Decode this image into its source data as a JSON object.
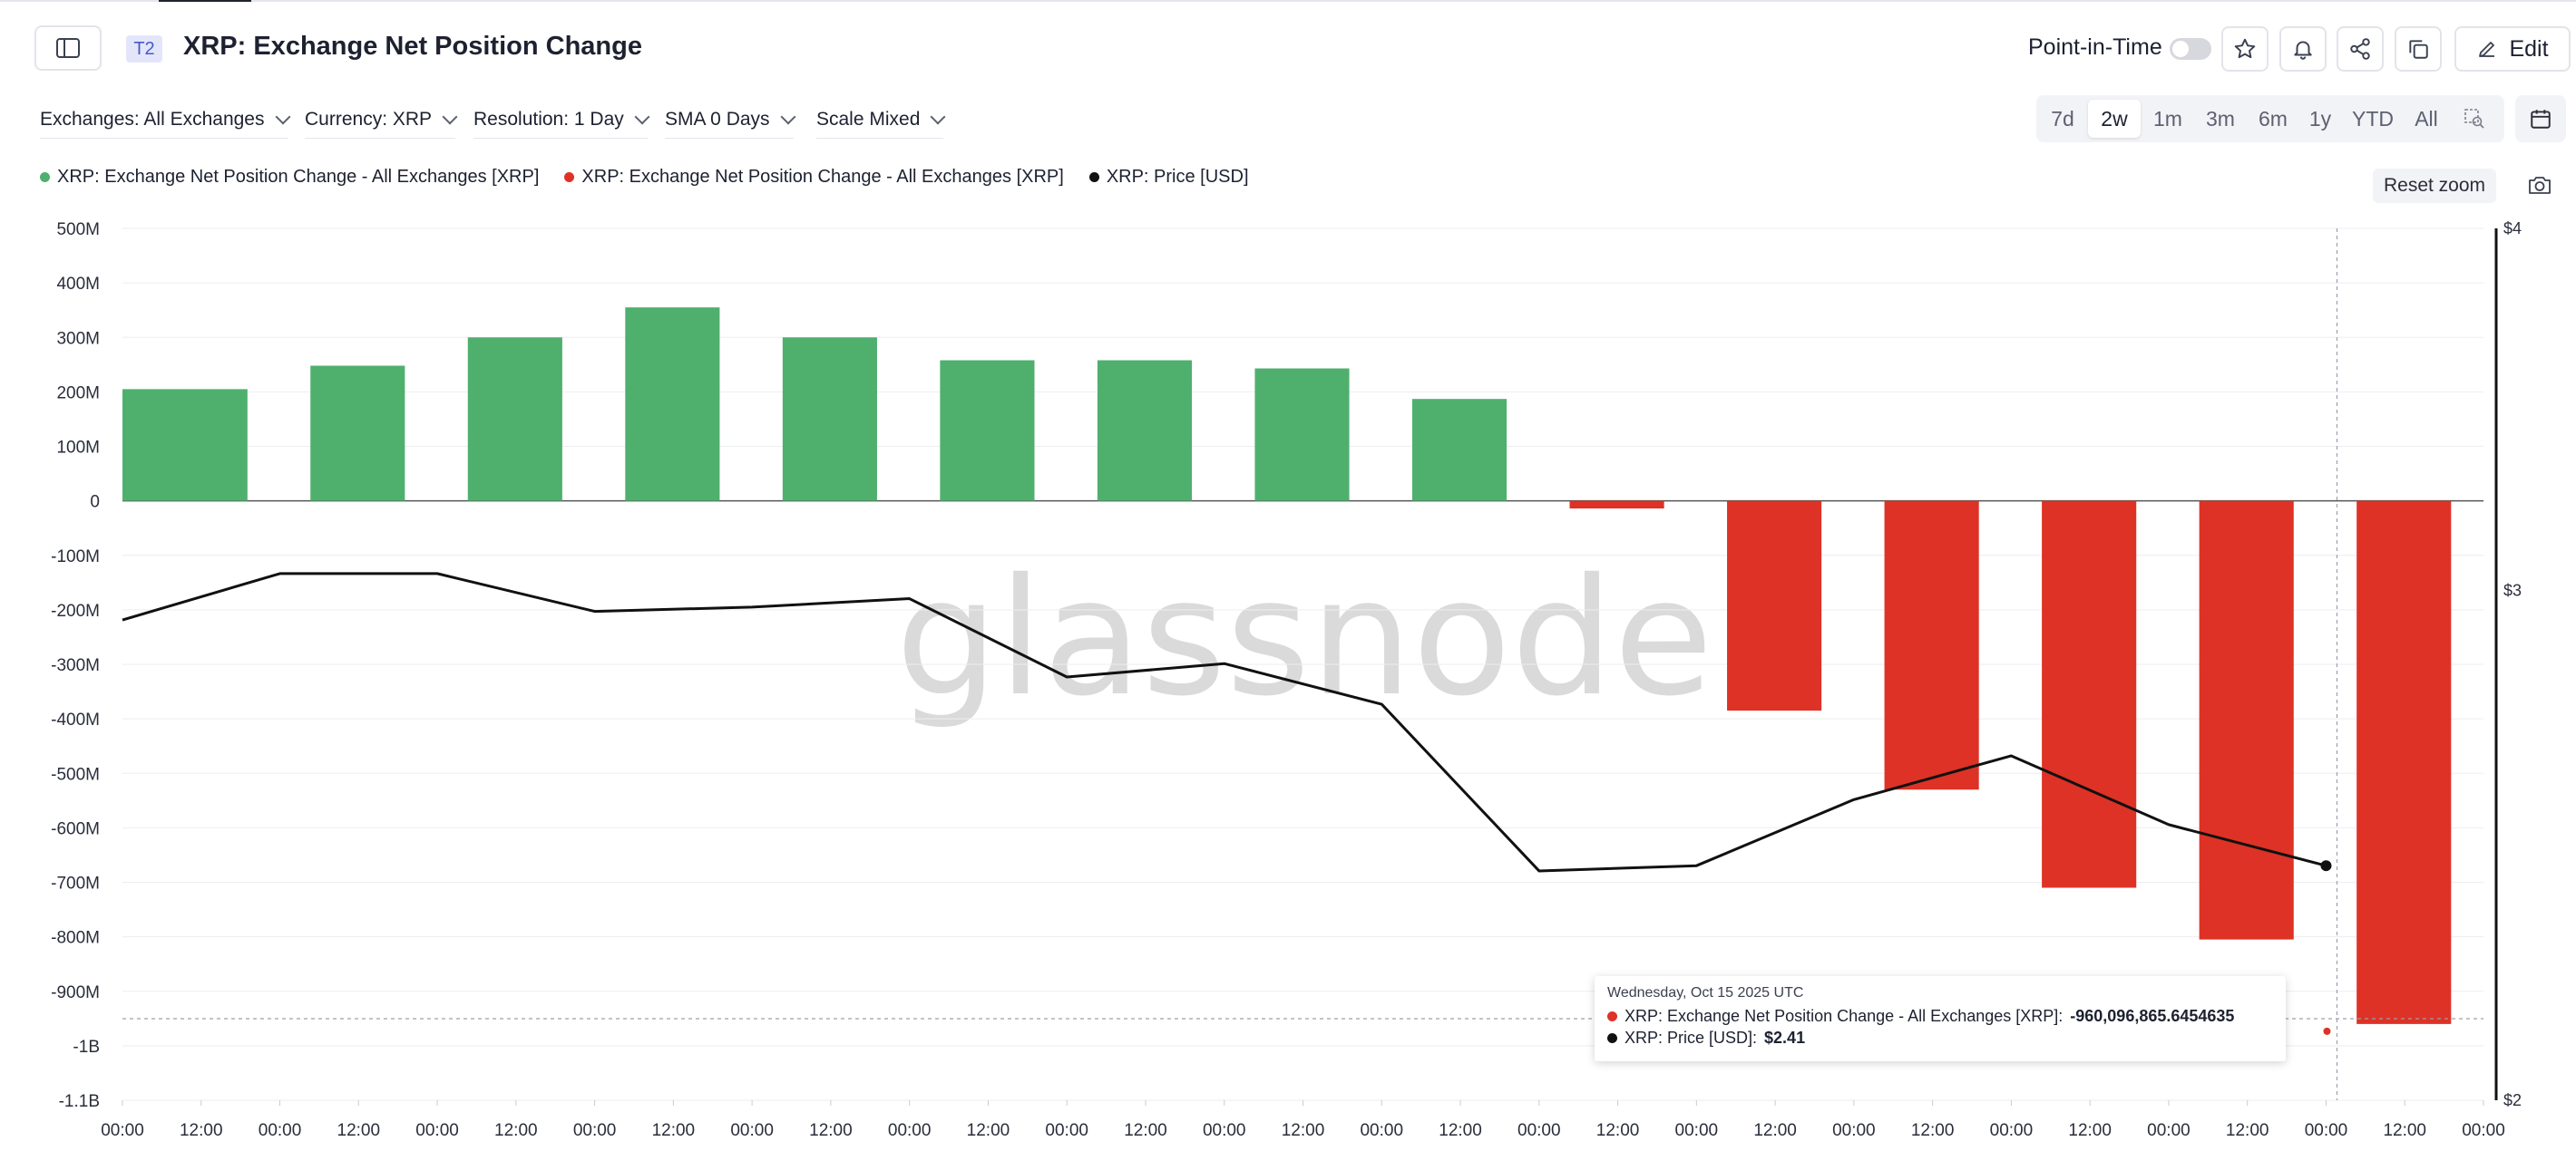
{
  "header": {
    "tag": "T2",
    "title": "XRP: Exchange Net Position Change",
    "point_in_time_label": "Point-in-Time",
    "edit_label": "Edit"
  },
  "filters": [
    {
      "label": "Exchanges: All Exchanges"
    },
    {
      "label": "Currency: XRP"
    },
    {
      "label": "Resolution: 1 Day"
    },
    {
      "label": "SMA 0 Days"
    },
    {
      "label": "Scale Mixed"
    }
  ],
  "ranges": [
    "7d",
    "2w",
    "1m",
    "3m",
    "6m",
    "1y",
    "YTD",
    "All"
  ],
  "active_range": "2w",
  "reset_zoom_label": "Reset zoom",
  "watermark": "glassnode",
  "colors": {
    "positive": "#4fb06e",
    "negative": "#de3226",
    "price": "#111111"
  },
  "chart_data": {
    "type": "bar",
    "legend": [
      {
        "label": "XRP: Exchange Net Position Change - All Exchanges [XRP]",
        "color": "#4fb06e"
      },
      {
        "label": "XRP: Exchange Net Position Change - All Exchanges [XRP]",
        "color": "#de3226"
      },
      {
        "label": "XRP: Price [USD]",
        "color": "#111111"
      }
    ],
    "legend_placement": "top-left",
    "grid": true,
    "y_left": {
      "min": -1100000000,
      "max": 500000000,
      "ticks": [
        500000000,
        400000000,
        300000000,
        200000000,
        100000000,
        0,
        -100000000,
        -200000000,
        -300000000,
        -400000000,
        -500000000,
        -600000000,
        -700000000,
        -800000000,
        -900000000,
        -1000000000,
        -1100000000
      ],
      "tick_labels": [
        "500M",
        "400M",
        "300M",
        "200M",
        "100M",
        "0",
        "-100M",
        "-200M",
        "-300M",
        "-400M",
        "-500M",
        "-600M",
        "-700M",
        "-800M",
        "-900M",
        "-1B",
        "-1.1B"
      ]
    },
    "y_right": {
      "min": 2,
      "max": 4,
      "ticks": [
        4,
        3,
        2
      ],
      "tick_labels": [
        "$4",
        "$3",
        "$2"
      ],
      "scale": "log"
    },
    "x_tick_labels": [
      "00:00",
      "12:00",
      "00:00",
      "12:00",
      "00:00",
      "12:00",
      "00:00",
      "12:00",
      "00:00",
      "12:00",
      "00:00",
      "12:00",
      "00:00",
      "12:00",
      "00:00",
      "12:00",
      "00:00",
      "12:00",
      "00:00",
      "12:00",
      "00:00",
      "12:00",
      "00:00",
      "12:00",
      "00:00",
      "12:00",
      "00:00",
      "12:00",
      "00:00",
      "12:00",
      "00:00"
    ],
    "net_position_change": [
      205000000,
      248000000,
      300000000,
      355000000,
      300000000,
      258000000,
      258000000,
      243000000,
      187000000,
      -14000000,
      -385000000,
      -530000000,
      -710000000,
      -805000000,
      -960096865.6454635
    ],
    "price": [
      2.93,
      3.04,
      3.04,
      2.95,
      2.96,
      2.98,
      2.8,
      2.83,
      2.74,
      2.4,
      2.41,
      2.54,
      2.63,
      2.49,
      2.41
    ],
    "partial_first_bar": true,
    "tooltip": {
      "date": "Wednesday, Oct 15 2025 UTC",
      "net_label": "XRP: Exchange Net Position Change - All Exchanges [XRP]:",
      "net_value": "-960,096,865.6454635",
      "price_label": "XRP: Price [USD]:",
      "price_value": "$2.41",
      "index": 14
    }
  }
}
